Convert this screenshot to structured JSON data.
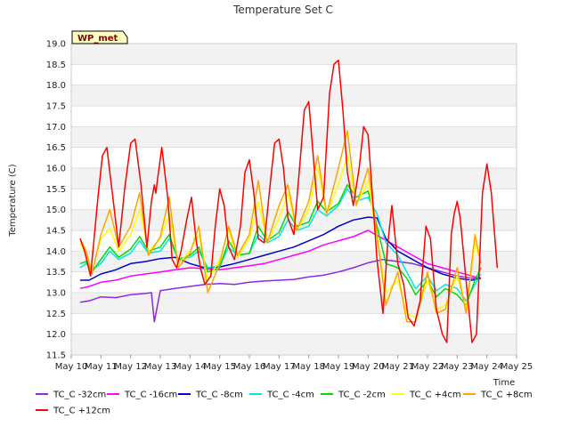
{
  "chart_data": {
    "type": "line",
    "title": "Temperature Set C",
    "xlabel": "Time",
    "ylabel": "Temperature (C)",
    "badge": "WP_met",
    "xlim": [
      10,
      25
    ],
    "ylim": [
      11.5,
      19.0
    ],
    "x_ticks": [
      10,
      11,
      12,
      13,
      14,
      15,
      16,
      17,
      18,
      19,
      20,
      21,
      22,
      23,
      24,
      25
    ],
    "x_tick_labels": [
      "May 10",
      "May 11",
      "May 12",
      "May 13",
      "May 14",
      "May 15",
      "May 16",
      "May 17",
      "May 18",
      "May 19",
      "May 20",
      "May 21",
      "May 22",
      "May 23",
      "May 24",
      "May 25"
    ],
    "y_ticks": [
      11.5,
      12.0,
      12.5,
      13.0,
      13.5,
      14.0,
      14.5,
      15.0,
      15.5,
      16.0,
      16.5,
      17.0,
      17.5,
      18.0,
      18.5,
      19.0
    ],
    "y_tick_labels": [
      "11.5",
      "12.0",
      "12.5",
      "13.0",
      "13.5",
      "14.0",
      "14.5",
      "15.0",
      "15.5",
      "16.0",
      "16.5",
      "17.0",
      "17.5",
      "18.0",
      "18.5",
      "19.0"
    ],
    "grid": "horizontal bands",
    "legend_position": "bottom",
    "x_units": "day of May",
    "series": [
      {
        "name": "TC_C -32cm",
        "color": "#8a2be2",
        "x": [
          10.3,
          10.6,
          11,
          11.5,
          12,
          12.5,
          12.7,
          12.8,
          13,
          13.5,
          14,
          14.5,
          15,
          15.5,
          16,
          16.5,
          17,
          17.5,
          18,
          18.5,
          19,
          19.5,
          20,
          20.5,
          21,
          21.5,
          22,
          22.5,
          23,
          23.5,
          23.8
        ],
        "y": [
          12.77,
          12.8,
          12.9,
          12.88,
          12.95,
          12.98,
          13.0,
          12.3,
          13.05,
          13.1,
          13.15,
          13.2,
          13.22,
          13.2,
          13.25,
          13.28,
          13.3,
          13.32,
          13.38,
          13.42,
          13.5,
          13.6,
          13.72,
          13.8,
          13.75,
          13.7,
          13.6,
          13.5,
          13.4,
          13.35,
          13.35
        ]
      },
      {
        "name": "TC_C -16cm",
        "color": "#ff00ff",
        "x": [
          10.3,
          10.6,
          11,
          11.5,
          12,
          12.5,
          13,
          13.5,
          14,
          14.5,
          15,
          15.5,
          16,
          16.5,
          17,
          17.5,
          18,
          18.5,
          19,
          19.5,
          20,
          20.5,
          21,
          21.5,
          22,
          22.5,
          23,
          23.5,
          23.8
        ],
        "y": [
          13.1,
          13.15,
          13.25,
          13.3,
          13.4,
          13.45,
          13.5,
          13.55,
          13.6,
          13.58,
          13.55,
          13.6,
          13.65,
          13.7,
          13.8,
          13.9,
          14.0,
          14.15,
          14.25,
          14.35,
          14.5,
          14.3,
          14.1,
          13.9,
          13.7,
          13.6,
          13.5,
          13.4,
          13.35
        ]
      },
      {
        "name": "TC_C -8cm",
        "color": "#0000cd",
        "x": [
          10.3,
          10.6,
          11,
          11.5,
          12,
          12.5,
          13,
          13.5,
          14,
          14.5,
          15,
          15.5,
          16,
          16.5,
          17,
          17.5,
          18,
          18.5,
          19,
          19.5,
          20,
          20.3,
          20.6,
          21,
          21.5,
          22,
          22.5,
          23,
          23.5,
          23.8
        ],
        "y": [
          13.3,
          13.3,
          13.45,
          13.55,
          13.7,
          13.75,
          13.82,
          13.85,
          13.7,
          13.6,
          13.62,
          13.7,
          13.8,
          13.9,
          14.0,
          14.1,
          14.25,
          14.4,
          14.6,
          14.75,
          14.82,
          14.8,
          14.3,
          14.0,
          13.8,
          13.6,
          13.45,
          13.35,
          13.3,
          13.35
        ]
      },
      {
        "name": "TC_C -4cm",
        "color": "#00e5ee",
        "x": [
          10.3,
          10.5,
          10.7,
          11,
          11.3,
          11.6,
          12,
          12.3,
          12.6,
          13,
          13.3,
          13.6,
          14,
          14.3,
          14.6,
          15,
          15.3,
          15.6,
          16,
          16.3,
          16.6,
          17,
          17.3,
          17.6,
          18,
          18.3,
          18.6,
          19,
          19.3,
          19.6,
          20,
          20.3,
          20.6,
          21,
          21.3,
          21.6,
          22,
          22.3,
          22.6,
          23,
          23.3,
          23.6,
          23.8
        ],
        "y": [
          13.6,
          13.7,
          13.55,
          13.7,
          14.0,
          13.8,
          13.95,
          14.25,
          13.95,
          14.0,
          14.3,
          13.8,
          13.85,
          14.0,
          13.6,
          13.65,
          14.1,
          13.9,
          13.95,
          14.4,
          14.2,
          14.35,
          14.75,
          14.5,
          14.6,
          15.0,
          14.85,
          15.1,
          15.5,
          15.2,
          15.3,
          14.9,
          14.2,
          13.9,
          13.5,
          13.1,
          13.4,
          13.05,
          13.2,
          13.1,
          12.8,
          13.2,
          13.45
        ]
      },
      {
        "name": "TC_C -2cm",
        "color": "#00dd00",
        "x": [
          10.3,
          10.5,
          10.7,
          11,
          11.3,
          11.6,
          12,
          12.3,
          12.6,
          13,
          13.3,
          13.6,
          14,
          14.3,
          14.6,
          15,
          15.3,
          15.6,
          16,
          16.3,
          16.6,
          17,
          17.3,
          17.6,
          18,
          18.3,
          18.6,
          19,
          19.3,
          19.6,
          20,
          20.3,
          20.6,
          21,
          21.3,
          21.6,
          22,
          22.3,
          22.6,
          23,
          23.3,
          23.6,
          23.8
        ],
        "y": [
          13.7,
          13.75,
          13.5,
          13.8,
          14.1,
          13.85,
          14.05,
          14.35,
          14.0,
          14.1,
          14.4,
          13.8,
          13.9,
          14.1,
          13.5,
          13.6,
          14.25,
          13.9,
          13.95,
          14.6,
          14.25,
          14.45,
          14.95,
          14.6,
          14.7,
          15.2,
          14.95,
          15.15,
          15.6,
          15.3,
          15.45,
          14.6,
          13.7,
          13.6,
          13.35,
          12.95,
          13.3,
          12.9,
          13.1,
          12.95,
          12.7,
          13.3,
          13.6
        ]
      },
      {
        "name": "TC_C +4cm",
        "color": "#ffff00",
        "x": [
          10.3,
          10.5,
          10.7,
          11,
          11.3,
          11.6,
          12,
          12.3,
          12.6,
          13,
          13.3,
          13.6,
          14,
          14.3,
          14.6,
          15,
          15.3,
          15.6,
          16,
          16.3,
          16.6,
          17,
          17.3,
          17.6,
          18,
          18.3,
          18.6,
          19,
          19.3,
          19.6,
          20,
          20.3,
          20.6,
          21,
          21.3,
          21.6,
          22,
          22.3,
          22.6,
          23,
          23.3,
          23.6,
          23.8
        ],
        "y": [
          14.2,
          13.9,
          13.5,
          14.3,
          14.55,
          14.0,
          14.4,
          15.0,
          14.0,
          14.3,
          14.9,
          13.7,
          14.0,
          14.4,
          13.3,
          13.8,
          14.5,
          13.85,
          14.3,
          15.2,
          14.2,
          14.8,
          15.4,
          14.5,
          15.0,
          16.0,
          14.9,
          15.6,
          16.3,
          15.1,
          15.7,
          14.3,
          13.0,
          13.3,
          12.5,
          12.4,
          13.3,
          12.6,
          12.7,
          13.4,
          12.6,
          14.2,
          13.7
        ]
      },
      {
        "name": "TC_C +8cm",
        "color": "#ffa500",
        "x": [
          10.3,
          10.5,
          10.7,
          11,
          11.3,
          11.6,
          12,
          12.3,
          12.6,
          13,
          13.3,
          13.6,
          14,
          14.3,
          14.6,
          15,
          15.3,
          15.6,
          16,
          16.3,
          16.6,
          17,
          17.3,
          17.6,
          18,
          18.3,
          18.6,
          19,
          19.3,
          19.6,
          20,
          20.3,
          20.6,
          21,
          21.3,
          21.6,
          22,
          22.3,
          22.6,
          23,
          23.3,
          23.6,
          23.8
        ],
        "y": [
          14.3,
          14.0,
          13.45,
          14.4,
          15.0,
          14.1,
          14.6,
          15.4,
          13.9,
          14.35,
          15.3,
          13.6,
          13.95,
          14.6,
          13.0,
          13.7,
          14.6,
          13.9,
          14.4,
          15.7,
          14.2,
          15.1,
          15.6,
          14.5,
          15.2,
          16.3,
          14.9,
          16.0,
          16.9,
          15.1,
          16.0,
          14.4,
          12.7,
          13.5,
          12.3,
          12.3,
          13.5,
          12.5,
          12.6,
          13.6,
          12.5,
          14.4,
          13.7
        ]
      },
      {
        "name": "TC_C +12cm",
        "color": "#ff0000",
        "x": [
          10.3,
          10.45,
          10.65,
          10.9,
          11.05,
          11.2,
          11.4,
          11.6,
          11.8,
          12.0,
          12.15,
          12.35,
          12.55,
          12.7,
          12.8,
          12.85,
          12.9,
          13.05,
          13.25,
          13.4,
          13.55,
          13.7,
          13.9,
          14.05,
          14.2,
          14.35,
          14.5,
          14.7,
          14.85,
          15.0,
          15.15,
          15.3,
          15.5,
          15.7,
          15.85,
          16.0,
          16.15,
          16.3,
          16.5,
          16.7,
          16.85,
          17.0,
          17.15,
          17.3,
          17.5,
          17.7,
          17.85,
          18.0,
          18.15,
          18.3,
          18.5,
          18.7,
          18.85,
          19.0,
          19.15,
          19.3,
          19.5,
          19.7,
          19.85,
          20.0,
          20.15,
          20.3,
          20.5,
          20.65,
          20.8,
          21.0,
          21.2,
          21.35,
          21.55,
          21.75,
          21.95,
          22.1,
          22.3,
          22.5,
          22.65,
          22.8,
          22.9,
          23.0,
          23.1,
          23.3,
          23.5,
          23.65,
          23.85,
          24.0,
          24.15,
          24.35
        ],
        "y": [
          14.3,
          14.0,
          13.4,
          15.3,
          16.3,
          16.5,
          15.3,
          14.1,
          15.5,
          16.6,
          16.7,
          15.6,
          14.1,
          15.2,
          15.6,
          15.4,
          15.7,
          16.5,
          15.3,
          13.8,
          13.6,
          14.0,
          14.8,
          15.3,
          14.3,
          13.6,
          13.2,
          13.4,
          14.6,
          15.5,
          15.1,
          14.1,
          13.8,
          14.6,
          15.9,
          16.2,
          15.4,
          14.3,
          14.2,
          15.6,
          16.6,
          16.7,
          16.0,
          14.8,
          14.4,
          16.1,
          17.4,
          17.6,
          16.3,
          15.0,
          15.3,
          17.8,
          18.5,
          18.6,
          17.4,
          15.9,
          15.1,
          16.0,
          17.0,
          16.8,
          15.3,
          13.8,
          12.5,
          14.1,
          15.1,
          13.7,
          13.2,
          12.4,
          12.2,
          12.8,
          14.6,
          14.3,
          12.6,
          12.0,
          11.8,
          14.4,
          14.9,
          15.2,
          14.8,
          13.3,
          11.8,
          12.0,
          15.4,
          16.1,
          15.4,
          13.6
        ]
      }
    ]
  }
}
